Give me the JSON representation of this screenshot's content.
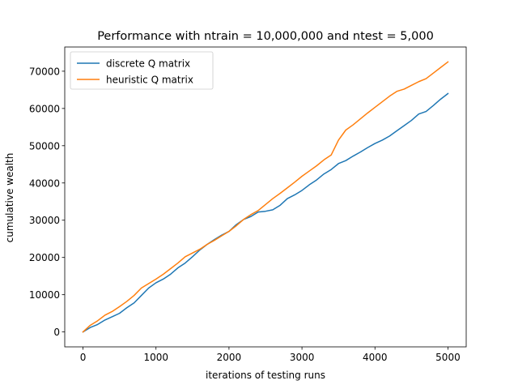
{
  "chart_data": {
    "type": "line",
    "title": "Performance with ntrain = 10,000,000 and ntest = 5,000",
    "xlabel": "iterations of testing runs",
    "ylabel": "cumulative wealth",
    "xlim": [
      -250,
      5250
    ],
    "ylim": [
      -4000,
      76500
    ],
    "xticks": [
      0,
      1000,
      2000,
      3000,
      4000,
      5000
    ],
    "xtick_labels": [
      "0",
      "1000",
      "2000",
      "3000",
      "4000",
      "5000"
    ],
    "yticks": [
      0,
      10000,
      20000,
      30000,
      40000,
      50000,
      60000,
      70000
    ],
    "ytick_labels": [
      "0",
      "10000",
      "20000",
      "30000",
      "40000",
      "50000",
      "60000",
      "70000"
    ],
    "grid": false,
    "legend_position": "top-left",
    "series": [
      {
        "name": "discrete Q matrix",
        "color": "#1f77b4",
        "x": [
          0,
          100,
          200,
          300,
          400,
          500,
          600,
          700,
          800,
          900,
          1000,
          1100,
          1200,
          1300,
          1400,
          1500,
          1600,
          1700,
          1800,
          1900,
          2000,
          2100,
          2200,
          2300,
          2400,
          2500,
          2600,
          2700,
          2800,
          2900,
          3000,
          3100,
          3200,
          3300,
          3400,
          3500,
          3600,
          3700,
          3800,
          3900,
          4000,
          4100,
          4200,
          4300,
          4400,
          4500,
          4600,
          4700,
          4800,
          4900,
          5000
        ],
        "y": [
          0,
          1200,
          2000,
          3200,
          4100,
          5000,
          6500,
          7800,
          9800,
          11800,
          13200,
          14200,
          15500,
          17200,
          18500,
          20200,
          22000,
          23500,
          24800,
          26000,
          27000,
          28800,
          30200,
          31000,
          32200,
          32400,
          32800,
          34000,
          35800,
          36800,
          38000,
          39500,
          40800,
          42400,
          43600,
          45200,
          46000,
          47200,
          48300,
          49500,
          50600,
          51500,
          52600,
          54000,
          55400,
          56800,
          58500,
          59200,
          60800,
          62500,
          64000
        ]
      },
      {
        "name": "heuristic Q matrix",
        "color": "#ff7f0e",
        "x": [
          0,
          100,
          200,
          300,
          400,
          500,
          600,
          700,
          800,
          900,
          1000,
          1100,
          1200,
          1300,
          1400,
          1500,
          1600,
          1700,
          1800,
          1900,
          2000,
          2100,
          2200,
          2300,
          2400,
          2500,
          2600,
          2700,
          2800,
          2900,
          3000,
          3100,
          3200,
          3300,
          3400,
          3500,
          3600,
          3700,
          3800,
          3900,
          4000,
          4100,
          4200,
          4300,
          4400,
          4500,
          4600,
          4700,
          4800,
          4900,
          5000
        ],
        "y": [
          0,
          1800,
          3000,
          4500,
          5500,
          6800,
          8200,
          9800,
          11800,
          13000,
          14200,
          15500,
          17000,
          18500,
          20200,
          21200,
          22200,
          23500,
          24600,
          25800,
          27000,
          28500,
          30200,
          31500,
          32600,
          34200,
          35800,
          37200,
          38700,
          40200,
          41800,
          43200,
          44600,
          46200,
          47500,
          51500,
          54200,
          55600,
          57200,
          58800,
          60300,
          61800,
          63300,
          64600,
          65200,
          66200,
          67200,
          68000,
          69500,
          71000,
          72500
        ]
      }
    ]
  }
}
